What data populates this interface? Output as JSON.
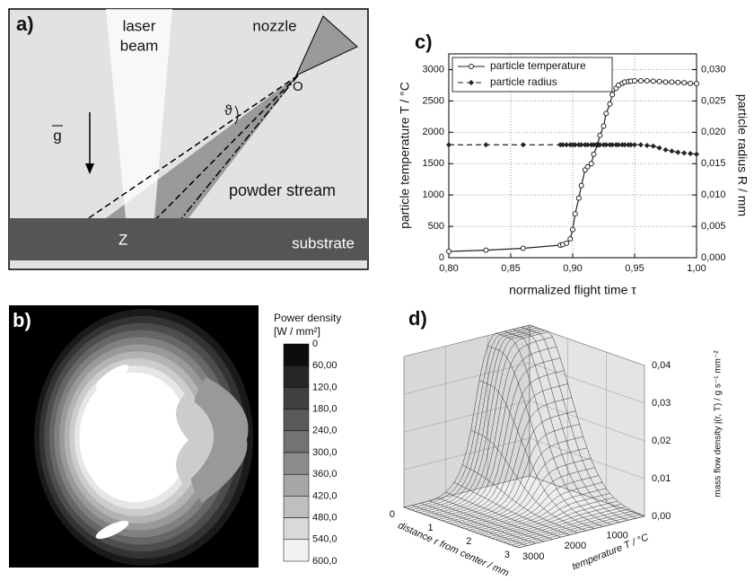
{
  "panel_a": {
    "label": "a)",
    "laser": "laser",
    "beam": "beam",
    "nozzle": "nozzle",
    "origin": "O",
    "angle": "ϑ",
    "gravity": "g",
    "powder": "powder stream",
    "z": "Z",
    "substrate": "substrate"
  },
  "panel_b": {
    "label": "b)",
    "title": "Power density",
    "unit": "[W / mm²]",
    "levels": [
      "0",
      "60,00",
      "120,0",
      "180,0",
      "240,0",
      "300,0",
      "360,0",
      "420,0",
      "480,0",
      "540,0",
      "600,0"
    ]
  },
  "chart_data": {
    "type": "line",
    "panel_label": "c)",
    "x_label": "normalized flight time τ",
    "y_label": "particle temperature T / °C",
    "y2_label": "particle radius R / mm",
    "x": [
      0.8,
      0.83,
      0.86,
      0.89,
      0.892,
      0.895,
      0.898,
      0.9,
      0.902,
      0.905,
      0.907,
      0.91,
      0.912,
      0.915,
      0.917,
      0.92,
      0.922,
      0.925,
      0.927,
      0.93,
      0.932,
      0.935,
      0.937,
      0.94,
      0.942,
      0.945,
      0.947,
      0.95,
      0.955,
      0.96,
      0.965,
      0.97,
      0.975,
      0.98,
      0.985,
      0.99,
      0.995,
      1.0
    ],
    "series": [
      {
        "name": "particle temperature",
        "color": "#222222",
        "style": "solid",
        "marker": "circle",
        "values": [
          100,
          120,
          150,
          200,
          210,
          230,
          300,
          450,
          700,
          950,
          1150,
          1400,
          1450,
          1500,
          1650,
          1800,
          1950,
          2100,
          2300,
          2450,
          2600,
          2700,
          2750,
          2780,
          2800,
          2810,
          2815,
          2820,
          2820,
          2820,
          2815,
          2810,
          2800,
          2800,
          2795,
          2790,
          2780,
          2775
        ]
      },
      {
        "name": "particle radius",
        "color": "#222222",
        "style": "dashed",
        "marker": "diamond",
        "axis": "y2",
        "values": [
          0.018,
          0.018,
          0.018,
          0.018,
          0.018,
          0.018,
          0.018,
          0.018,
          0.018,
          0.018,
          0.018,
          0.018,
          0.018,
          0.018,
          0.018,
          0.018,
          0.018,
          0.018,
          0.018,
          0.018,
          0.018,
          0.018,
          0.018,
          0.018,
          0.018,
          0.018,
          0.018,
          0.018,
          0.018,
          0.0179,
          0.0178,
          0.0175,
          0.0172,
          0.017,
          0.0168,
          0.0167,
          0.0166,
          0.0165
        ]
      }
    ],
    "xlim": [
      0.8,
      1.0
    ],
    "xticks": [
      {
        "value": 0.8,
        "label": "0,80"
      },
      {
        "value": 0.85,
        "label": "0,85"
      },
      {
        "value": 0.9,
        "label": "0,90"
      },
      {
        "value": 0.95,
        "label": "0,95"
      },
      {
        "value": 1.0,
        "label": "1,00"
      }
    ],
    "ylim": [
      0,
      3250
    ],
    "yticks": [
      0,
      500,
      1000,
      1500,
      2000,
      2500,
      3000
    ],
    "y2lim": [
      0,
      0.0325
    ],
    "y2ticks": [
      {
        "value": 0,
        "label": "0,000"
      },
      {
        "value": 0.005,
        "label": "0,005"
      },
      {
        "value": 0.01,
        "label": "0,010"
      },
      {
        "value": 0.015,
        "label": "0,015"
      },
      {
        "value": 0.02,
        "label": "0,020"
      },
      {
        "value": 0.025,
        "label": "0,025"
      },
      {
        "value": 0.03,
        "label": "0,030"
      }
    ],
    "grid": true,
    "legend": "top-left"
  },
  "panel_d": {
    "label": "d)",
    "z_label": "mass flow density j(r, T) / g s⁻¹ mm⁻²",
    "r_label": "distance r from center / mm",
    "t_label": "temperature T / °C",
    "z_ticks": [
      "0,00",
      "0,01",
      "0,02",
      "0,03",
      "0,04"
    ],
    "r_ticks": [
      "0",
      "1",
      "2",
      "3"
    ],
    "t_ticks": [
      "1000",
      "2000",
      "3000"
    ]
  }
}
